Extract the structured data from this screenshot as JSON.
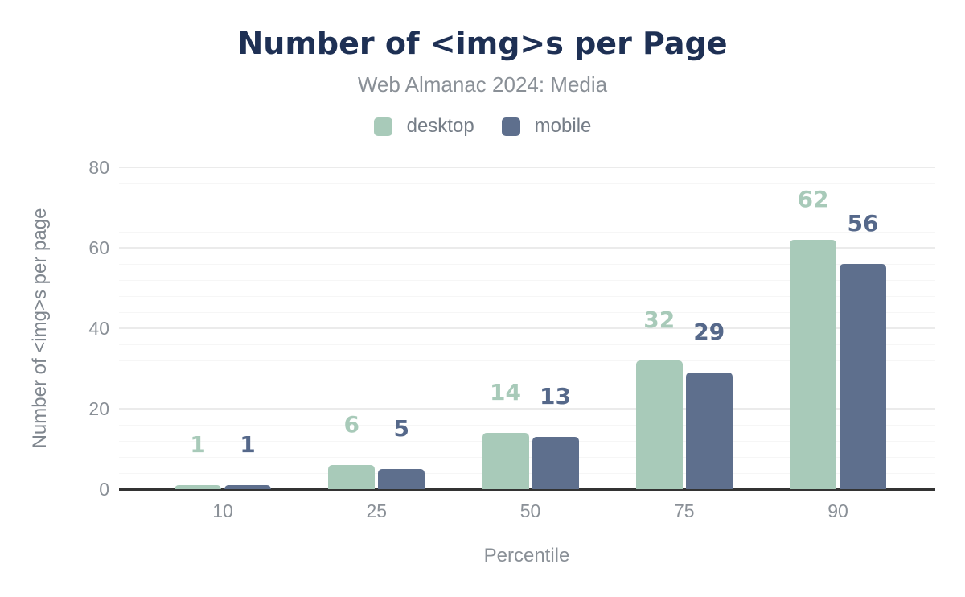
{
  "header": {
    "title": "Number of <img>s per Page",
    "subtitle": "Web Almanac 2024: Media"
  },
  "legend": [
    {
      "label": "desktop",
      "color": "#a8cab9"
    },
    {
      "label": "mobile",
      "color": "#5e6f8d"
    }
  ],
  "axes": {
    "xlabel": "Percentile",
    "ylabel": "Number of <img>s per page"
  },
  "colors": {
    "title": "#1e3054",
    "muted_text": "#8a9097",
    "legend_text": "#757d87",
    "axis_line": "#333333",
    "major_grid": "#ebebeb",
    "minor_grid": "#f6f6f6",
    "desktop": "#a8cab9",
    "mobile": "#5e6f8d",
    "desktop_label": "#a8cab9",
    "mobile_label": "#55688a"
  },
  "chart_data": {
    "type": "bar",
    "title": "Number of <img>s per Page",
    "subtitle": "Web Almanac 2024: Media",
    "categories": [
      "10",
      "25",
      "50",
      "75",
      "90"
    ],
    "series": [
      {
        "name": "desktop",
        "color": "#a8cab9",
        "label_color": "#a8cab9",
        "values": [
          1,
          6,
          14,
          32,
          62
        ]
      },
      {
        "name": "mobile",
        "color": "#5e6f8d",
        "label_color": "#55688a",
        "values": [
          1,
          5,
          13,
          29,
          56
        ]
      }
    ],
    "xlabel": "Percentile",
    "ylabel": "Number of <img>s per page",
    "ylim": [
      0,
      80
    ],
    "yticks": [
      0,
      20,
      40,
      60,
      80
    ],
    "minor_grid_step": 4,
    "grid": "on",
    "legend_position": "top",
    "data_labels": true
  }
}
